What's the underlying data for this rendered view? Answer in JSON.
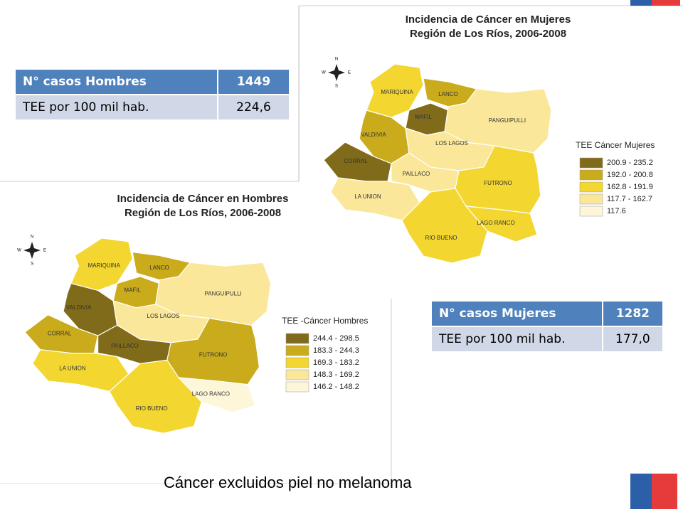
{
  "table_men": {
    "rows": [
      [
        "N° casos Hombres",
        "1449"
      ],
      [
        "TEE por 100 mil hab.",
        "224,6"
      ]
    ]
  },
  "table_women": {
    "rows": [
      [
        "N° casos Mujeres",
        "1282"
      ],
      [
        "TEE por 100 mil hab.",
        "177,0"
      ]
    ]
  },
  "map_women": {
    "title": "Incidencia de Cáncer en Mujeres",
    "subtitle": "Región de Los Ríos, 2006-2008",
    "compass": {
      "n": "N",
      "s": "S",
      "w": "W",
      "e": "E"
    },
    "regions": [
      {
        "label": "MARIQUINA",
        "color": "#f3d630"
      },
      {
        "label": "LANCO",
        "color": "#c9ab1c"
      },
      {
        "label": "MAFIL",
        "color": "#806b1a"
      },
      {
        "label": "PANGUIPULLI",
        "color": "#fbe79a"
      },
      {
        "label": "VALDIVIA",
        "color": "#c9ab1c"
      },
      {
        "label": "CORRAL",
        "color": "#806b1a"
      },
      {
        "label": "LOS LAGOS",
        "color": "#fbe79a"
      },
      {
        "label": "PAILLACO",
        "color": "#fbe79a"
      },
      {
        "label": "LA UNION",
        "color": "#fbe79a"
      },
      {
        "label": "FUTRONO",
        "color": "#f3d630"
      },
      {
        "label": "RIO BUENO",
        "color": "#f3d630"
      },
      {
        "label": "LAGO RANCO",
        "color": "#f3d630"
      }
    ],
    "legend": {
      "title": "TEE Cáncer Mujeres",
      "classes": [
        {
          "label": "200.9 - 235.2",
          "color": "#806b1a"
        },
        {
          "label": "192.0 - 200.8",
          "color": "#c9ab1c"
        },
        {
          "label": "162.8 - 191.9",
          "color": "#f3d630"
        },
        {
          "label": "117.7 - 162.7",
          "color": "#fbe79a"
        },
        {
          "label": "117.6",
          "color": "#fdf6d9"
        }
      ]
    }
  },
  "map_men": {
    "title": "Incidencia de Cáncer en Hombres",
    "subtitle": "Región de Los Ríos, 2006-2008",
    "compass": {
      "n": "N",
      "s": "S",
      "w": "W",
      "e": "E"
    },
    "regions": [
      {
        "label": "MARIQUINA",
        "color": "#f3d630"
      },
      {
        "label": "LANCO",
        "color": "#c9ab1c"
      },
      {
        "label": "MAFIL",
        "color": "#c9ab1c"
      },
      {
        "label": "PANGUIPULLI",
        "color": "#fbe79a"
      },
      {
        "label": "VALDIVIA",
        "color": "#806b1a"
      },
      {
        "label": "CORRAL",
        "color": "#c9ab1c"
      },
      {
        "label": "LOS LAGOS",
        "color": "#fbe79a"
      },
      {
        "label": "PAILLACO",
        "color": "#806b1a"
      },
      {
        "label": "LA UNION",
        "color": "#f3d630"
      },
      {
        "label": "FUTRONO",
        "color": "#c9ab1c"
      },
      {
        "label": "RIO BUENO",
        "color": "#f3d630"
      },
      {
        "label": "LAGO RANCO",
        "color": "#fdf6d9"
      }
    ],
    "legend": {
      "title": "TEE -Cáncer Hombres",
      "classes": [
        {
          "label": "244.4 - 298.5",
          "color": "#806b1a"
        },
        {
          "label": "183.3 - 244.3",
          "color": "#c9ab1c"
        },
        {
          "label": "169.3 - 183.2",
          "color": "#f3d630"
        },
        {
          "label": "148.3 - 169.2",
          "color": "#fbe79a"
        },
        {
          "label": "146.2 - 148.2",
          "color": "#fdf6d9"
        }
      ]
    }
  },
  "footnote": "Cáncer excluidos piel no melanoma"
}
